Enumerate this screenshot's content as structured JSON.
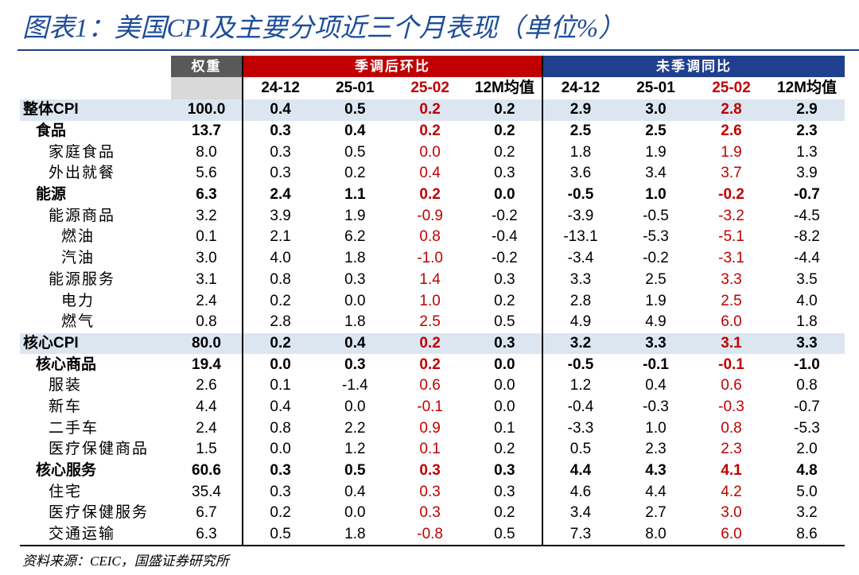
{
  "header": {
    "title": "图表1：美国CPI及主要分项近三个月表现（单位%）"
  },
  "table": {
    "weight_header": "权重",
    "groups": [
      "季调后环比",
      "未季调同比"
    ],
    "periods": [
      "24-12",
      "25-01",
      "25-02",
      "12M均值",
      "24-12",
      "25-01",
      "25-02",
      "12M均值"
    ],
    "rows": [
      {
        "label": "整体CPI",
        "weight": "100.0",
        "values": [
          "0.4",
          "0.5",
          "0.2",
          "0.2",
          "2.9",
          "3.0",
          "2.8",
          "2.9"
        ]
      },
      {
        "label": "食品",
        "weight": "13.7",
        "values": [
          "0.3",
          "0.4",
          "0.2",
          "0.2",
          "2.5",
          "2.5",
          "2.6",
          "2.3"
        ]
      },
      {
        "label": "家庭食品",
        "weight": "8.0",
        "values": [
          "0.3",
          "0.5",
          "0.0",
          "0.2",
          "1.8",
          "1.9",
          "1.9",
          "1.3"
        ]
      },
      {
        "label": "外出就餐",
        "weight": "5.6",
        "values": [
          "0.3",
          "0.2",
          "0.4",
          "0.3",
          "3.6",
          "3.4",
          "3.7",
          "3.9"
        ]
      },
      {
        "label": "能源",
        "weight": "6.3",
        "values": [
          "2.4",
          "1.1",
          "0.2",
          "0.0",
          "-0.5",
          "1.0",
          "-0.2",
          "-0.7"
        ]
      },
      {
        "label": "能源商品",
        "weight": "3.2",
        "values": [
          "3.9",
          "1.9",
          "-0.9",
          "-0.2",
          "-3.9",
          "-0.5",
          "-3.2",
          "-4.5"
        ]
      },
      {
        "label": "燃油",
        "weight": "0.1",
        "values": [
          "2.1",
          "6.2",
          "0.8",
          "-0.4",
          "-13.1",
          "-5.3",
          "-5.1",
          "-8.2"
        ]
      },
      {
        "label": "汽油",
        "weight": "3.0",
        "values": [
          "4.0",
          "1.8",
          "-1.0",
          "-0.2",
          "-3.4",
          "-0.2",
          "-3.1",
          "-4.4"
        ]
      },
      {
        "label": "能源服务",
        "weight": "3.1",
        "values": [
          "0.8",
          "0.3",
          "1.4",
          "0.3",
          "3.3",
          "2.5",
          "3.3",
          "3.5"
        ]
      },
      {
        "label": "电力",
        "weight": "2.4",
        "values": [
          "0.2",
          "0.0",
          "1.0",
          "0.2",
          "2.8",
          "1.9",
          "2.5",
          "4.0"
        ]
      },
      {
        "label": "燃气",
        "weight": "0.8",
        "values": [
          "2.8",
          "1.8",
          "2.5",
          "0.5",
          "4.9",
          "4.9",
          "6.0",
          "1.8"
        ]
      },
      {
        "label": "核心CPI",
        "weight": "80.0",
        "values": [
          "0.2",
          "0.4",
          "0.2",
          "0.3",
          "3.2",
          "3.3",
          "3.1",
          "3.3"
        ]
      },
      {
        "label": "核心商品",
        "weight": "19.4",
        "values": [
          "0.0",
          "0.3",
          "0.2",
          "0.0",
          "-0.5",
          "-0.1",
          "-0.1",
          "-1.0"
        ]
      },
      {
        "label": "服装",
        "weight": "2.6",
        "values": [
          "0.1",
          "-1.4",
          "0.6",
          "0.0",
          "1.2",
          "0.4",
          "0.6",
          "0.8"
        ]
      },
      {
        "label": "新车",
        "weight": "4.4",
        "values": [
          "0.4",
          "0.0",
          "-0.1",
          "0.0",
          "-0.4",
          "-0.3",
          "-0.3",
          "-0.7"
        ]
      },
      {
        "label": "二手车",
        "weight": "2.4",
        "values": [
          "0.8",
          "2.2",
          "0.9",
          "0.1",
          "-3.3",
          "1.0",
          "0.8",
          "-5.3"
        ]
      },
      {
        "label": "医疗保健商品",
        "weight": "1.5",
        "values": [
          "0.0",
          "1.2",
          "0.1",
          "0.2",
          "0.5",
          "2.3",
          "2.3",
          "2.0"
        ]
      },
      {
        "label": "核心服务",
        "weight": "60.6",
        "values": [
          "0.3",
          "0.5",
          "0.3",
          "0.3",
          "4.4",
          "4.3",
          "4.1",
          "4.8"
        ]
      },
      {
        "label": "住宅",
        "weight": "35.4",
        "values": [
          "0.3",
          "0.4",
          "0.3",
          "0.3",
          "4.6",
          "4.4",
          "4.2",
          "5.0"
        ]
      },
      {
        "label": "医疗保健服务",
        "weight": "6.7",
        "values": [
          "0.2",
          "0.0",
          "0.3",
          "0.2",
          "3.4",
          "2.7",
          "3.0",
          "3.2"
        ]
      },
      {
        "label": "交通运输",
        "weight": "6.3",
        "values": [
          "0.5",
          "1.8",
          "-0.8",
          "0.5",
          "7.3",
          "8.0",
          "6.0",
          "8.6"
        ]
      }
    ]
  },
  "source": "资料来源：CEIC，国盛证券研究所"
}
